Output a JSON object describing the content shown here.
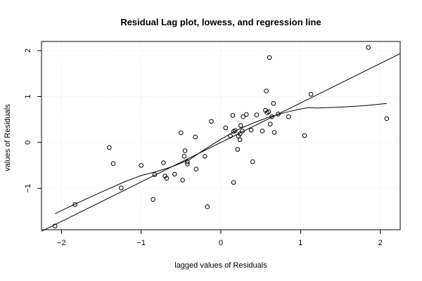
{
  "chart_data": {
    "type": "scatter",
    "title": "Residual Lag plot, lowess, and regression line",
    "xlabel": "lagged values of Residuals",
    "ylabel": "values of Residuals",
    "xlim": [
      -2.25,
      2.25
    ],
    "ylim": [
      -1.9,
      2.2
    ],
    "xticks": [
      -2,
      -1,
      0,
      1,
      2
    ],
    "yticks": [
      -1,
      0,
      1,
      2
    ],
    "grid": true,
    "points": [
      [
        -2.08,
        -1.82
      ],
      [
        -1.83,
        -1.35
      ],
      [
        -1.4,
        -0.11
      ],
      [
        -1.35,
        -0.46
      ],
      [
        -1.25,
        -0.99
      ],
      [
        -1.0,
        -0.5
      ],
      [
        -0.85,
        -1.24
      ],
      [
        -0.83,
        -0.7
      ],
      [
        -0.72,
        -0.44
      ],
      [
        -0.7,
        -0.73
      ],
      [
        -0.68,
        -0.78
      ],
      [
        -0.58,
        -0.69
      ],
      [
        -0.5,
        0.21
      ],
      [
        -0.48,
        -0.82
      ],
      [
        -0.46,
        -0.3
      ],
      [
        -0.45,
        -0.18
      ],
      [
        -0.42,
        -0.42
      ],
      [
        -0.42,
        -0.47
      ],
      [
        -0.32,
        0.12
      ],
      [
        -0.31,
        -0.58
      ],
      [
        -0.2,
        -0.3
      ],
      [
        -0.17,
        -1.4
      ],
      [
        -0.12,
        0.46
      ],
      [
        0.06,
        0.32
      ],
      [
        0.12,
        0.14
      ],
      [
        0.15,
        0.59
      ],
      [
        0.16,
        0.24
      ],
      [
        0.18,
        0.26
      ],
      [
        0.16,
        -0.87
      ],
      [
        0.21,
        -0.15
      ],
      [
        0.22,
        0.14
      ],
      [
        0.24,
        0.19
      ],
      [
        0.25,
        0.37
      ],
      [
        0.24,
        0.06
      ],
      [
        0.27,
        0.25
      ],
      [
        0.28,
        0.56
      ],
      [
        0.32,
        0.61
      ],
      [
        0.38,
        0.27
      ],
      [
        0.4,
        -0.42
      ],
      [
        0.45,
        0.6
      ],
      [
        0.52,
        0.25
      ],
      [
        0.56,
        0.7
      ],
      [
        0.57,
        1.12
      ],
      [
        0.58,
        0.65
      ],
      [
        0.6,
        0.67
      ],
      [
        0.62,
        0.4
      ],
      [
        0.61,
        1.85
      ],
      [
        0.64,
        0.56
      ],
      [
        0.66,
        0.85
      ],
      [
        0.67,
        0.22
      ],
      [
        0.72,
        0.62
      ],
      [
        0.85,
        0.56
      ],
      [
        1.05,
        0.15
      ],
      [
        1.13,
        1.05
      ],
      [
        1.85,
        2.07
      ],
      [
        2.08,
        0.52
      ]
    ],
    "lowess": [
      [
        -2.08,
        -1.55
      ],
      [
        -1.8,
        -1.32
      ],
      [
        -1.5,
        -1.08
      ],
      [
        -1.2,
        -0.85
      ],
      [
        -1.0,
        -0.72
      ],
      [
        -0.8,
        -0.63
      ],
      [
        -0.6,
        -0.52
      ],
      [
        -0.4,
        -0.38
      ],
      [
        -0.2,
        -0.15
      ],
      [
        0.0,
        0.07
      ],
      [
        0.2,
        0.27
      ],
      [
        0.4,
        0.42
      ],
      [
        0.6,
        0.55
      ],
      [
        0.8,
        0.65
      ],
      [
        1.0,
        0.73
      ],
      [
        1.1,
        0.76
      ],
      [
        1.2,
        0.75
      ],
      [
        1.5,
        0.77
      ],
      [
        1.8,
        0.8
      ],
      [
        2.08,
        0.85
      ]
    ],
    "regression": {
      "intercept": 0.0,
      "slope": 0.86
    }
  }
}
